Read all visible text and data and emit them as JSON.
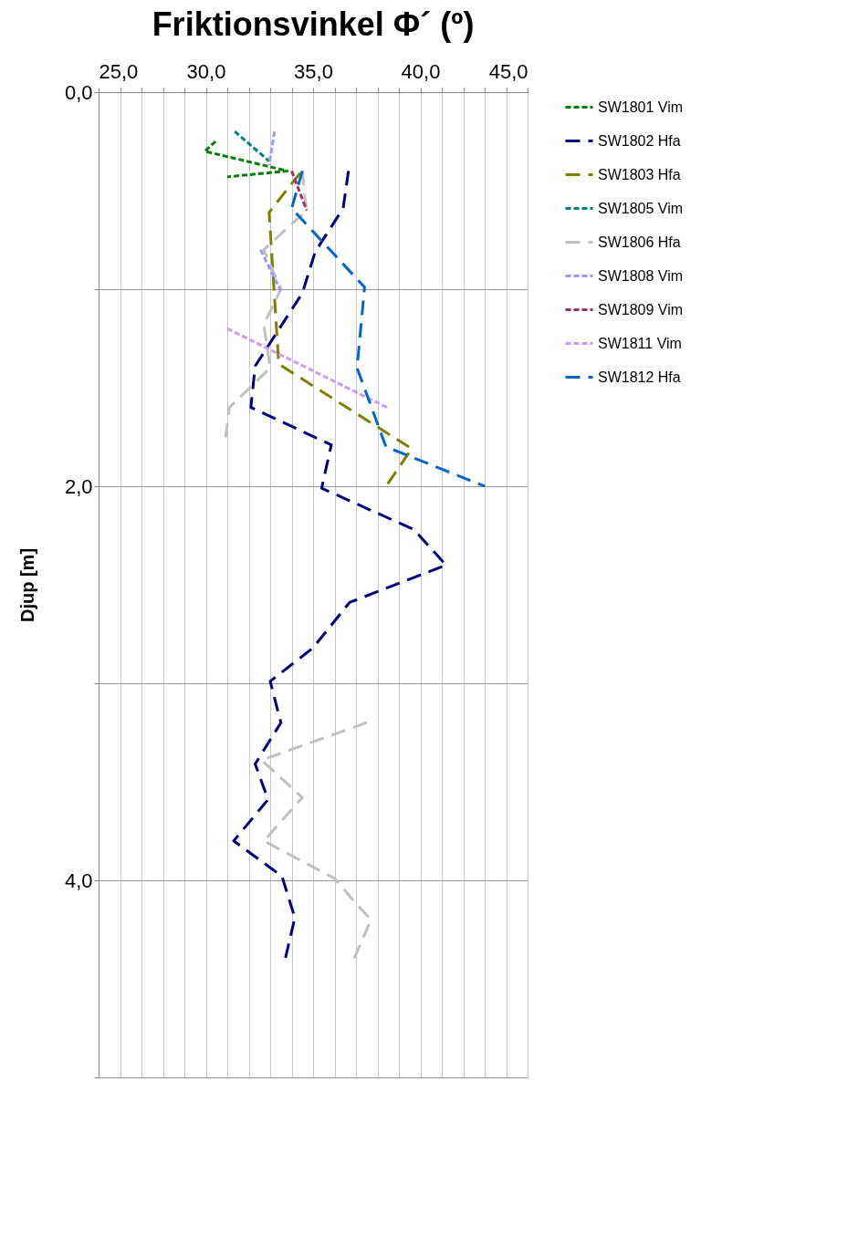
{
  "chart_data": {
    "type": "line",
    "title": "Friktionsvinkel Φ´ (º)",
    "ylabel": "Djup [m]",
    "xlim": [
      25,
      45
    ],
    "xticks": [
      {
        "value": 25,
        "label": "25,0"
      },
      {
        "value": 26,
        "label": null
      },
      {
        "value": 27,
        "label": null
      },
      {
        "value": 28,
        "label": null
      },
      {
        "value": 29,
        "label": null
      },
      {
        "value": 30,
        "label": "30,0"
      },
      {
        "value": 31,
        "label": null
      },
      {
        "value": 32,
        "label": null
      },
      {
        "value": 33,
        "label": null
      },
      {
        "value": 34,
        "label": null
      },
      {
        "value": 35,
        "label": "35,0"
      },
      {
        "value": 36,
        "label": null
      },
      {
        "value": 37,
        "label": null
      },
      {
        "value": 38,
        "label": null
      },
      {
        "value": 39,
        "label": null
      },
      {
        "value": 40,
        "label": "40,0"
      },
      {
        "value": 41,
        "label": null
      },
      {
        "value": 42,
        "label": null
      },
      {
        "value": 43,
        "label": null
      },
      {
        "value": 44,
        "label": null
      },
      {
        "value": 45,
        "label": "45,0"
      }
    ],
    "ylim": [
      5,
      0
    ],
    "yticks": [
      {
        "value": 0,
        "label": "0,0"
      },
      {
        "value": 1,
        "label": null
      },
      {
        "value": 2,
        "label": "2,0"
      },
      {
        "value": 3,
        "label": null
      },
      {
        "value": 4,
        "label": "4,0"
      },
      {
        "value": 5,
        "label": null
      }
    ],
    "grid": true,
    "legend": "right",
    "series": [
      {
        "name": "SW1801 Vim",
        "color": "#008000",
        "line_style": "dotted",
        "x": [
          30.45,
          29.95,
          33.8,
          31.0
        ],
        "values": [
          0.25,
          0.3,
          0.4,
          0.43
        ]
      },
      {
        "name": "SW1802 Hfa",
        "color": "#000080",
        "line_style": "dashed",
        "x": [
          36.65,
          36.4,
          35.1,
          34.5,
          32.3,
          32.1,
          35.85,
          35.4,
          39.7,
          41.2,
          36.7,
          35.0,
          33.0,
          33.5,
          32.3,
          32.9,
          31.3,
          33.55,
          34.15,
          33.7
        ],
        "values": [
          0.4,
          0.59,
          0.81,
          1.02,
          1.39,
          1.6,
          1.79,
          2.01,
          2.22,
          2.4,
          2.59,
          2.82,
          2.99,
          3.2,
          3.41,
          3.59,
          3.8,
          3.98,
          4.19,
          4.4
        ]
      },
      {
        "name": "SW1803 Hfa",
        "color": "#808000",
        "line_style": "dashed",
        "x": [
          34.4,
          32.95,
          33.4,
          39.6,
          38.4
        ],
        "values": [
          0.41,
          0.61,
          1.38,
          1.81,
          2.0
        ]
      },
      {
        "name": "SW1805 Vim",
        "color": "#008080",
        "line_style": "dotted",
        "x": [
          31.35,
          32.95
        ],
        "values": [
          0.2,
          0.35
        ]
      },
      {
        "name": "SW1806 Hfa",
        "color": "#c0c0c0",
        "line_style": "dashed",
        "x": [
          34.5,
          34.6,
          34.7,
          32.7,
          33.5,
          32.7,
          33.0,
          31.1,
          30.9,
          null,
          37.5,
          32.6,
          34.5,
          32.7,
          36.0,
          37.1,
          37.7,
          36.9
        ],
        "values": [
          0.4,
          0.52,
          0.6,
          0.8,
          1.0,
          1.18,
          1.4,
          1.6,
          1.77,
          null,
          3.2,
          3.39,
          3.58,
          3.8,
          3.99,
          4.13,
          4.2,
          4.4
        ]
      },
      {
        "name": "SW1808 Vim",
        "color": "#9999ff",
        "line_style": "dotted",
        "x": [
          33.2,
          32.95,
          null,
          32.55,
          33.5
        ],
        "values": [
          0.2,
          0.37,
          null,
          0.8,
          1.01
        ]
      },
      {
        "name": "SW1809 Vim",
        "color": "#993366",
        "line_style": "dotted",
        "x": [
          34.0,
          34.7
        ],
        "values": [
          0.4,
          0.6
        ]
      },
      {
        "name": "SW1811 Vim",
        "color": "#cc99ff",
        "line_style": "dotted",
        "x": [
          31.0,
          38.45
        ],
        "values": [
          1.2,
          1.6
        ]
      },
      {
        "name": "SW1812 Hfa",
        "color": "#0066cc",
        "line_style": "dashed",
        "x": [
          34.5,
          34.0,
          37.4,
          37.05,
          38.4,
          43.0
        ],
        "values": [
          0.4,
          0.59,
          0.99,
          1.4,
          1.8,
          2.0
        ]
      }
    ]
  }
}
